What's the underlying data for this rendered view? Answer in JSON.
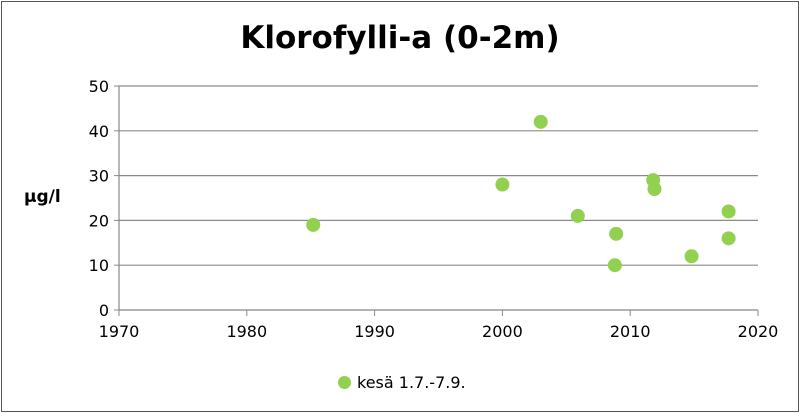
{
  "chart_data": {
    "type": "scatter",
    "title": "Klorofylli-a (0-2m)",
    "xlabel": "",
    "ylabel": "µg/l",
    "xlim": [
      1970,
      2020
    ],
    "ylim": [
      0,
      50
    ],
    "x_ticks": [
      1970,
      1980,
      1990,
      2000,
      2010,
      2020
    ],
    "y_ticks": [
      0,
      10,
      20,
      30,
      40,
      50
    ],
    "grid": "horizontal",
    "legend_position": "bottom",
    "series": [
      {
        "name": "kesä 1.7.-7.9.",
        "color": "#92d050",
        "points": [
          {
            "x": 1985.2,
            "y": 19
          },
          {
            "x": 2000.0,
            "y": 28
          },
          {
            "x": 2003.0,
            "y": 42
          },
          {
            "x": 2005.9,
            "y": 21
          },
          {
            "x": 2008.9,
            "y": 17
          },
          {
            "x": 2008.8,
            "y": 10
          },
          {
            "x": 2011.8,
            "y": 29
          },
          {
            "x": 2011.9,
            "y": 27
          },
          {
            "x": 2014.8,
            "y": 12
          },
          {
            "x": 2017.7,
            "y": 22
          },
          {
            "x": 2017.7,
            "y": 16
          }
        ]
      }
    ]
  }
}
